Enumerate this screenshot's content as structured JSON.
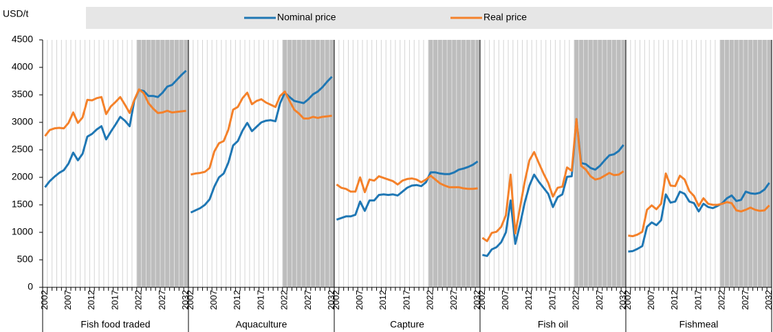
{
  "chart_data": {
    "type": "line",
    "ylabel": "USD/t",
    "ylim": [
      0,
      4500
    ],
    "yticks": [
      0,
      500,
      1000,
      1500,
      2000,
      2500,
      3000,
      3500,
      4000,
      4500
    ],
    "x": [
      2002,
      2003,
      2004,
      2005,
      2006,
      2007,
      2008,
      2009,
      2010,
      2011,
      2012,
      2013,
      2014,
      2015,
      2016,
      2017,
      2018,
      2019,
      2020,
      2021,
      2022,
      2023,
      2024,
      2025,
      2026,
      2027,
      2028,
      2029,
      2030,
      2031,
      2032
    ],
    "xlim": [
      2002,
      2032
    ],
    "xticks": [
      2002,
      2007,
      2012,
      2017,
      2022,
      2027,
      2032
    ],
    "shaded_from": 2022,
    "grid": false,
    "legend": [
      {
        "name": "Nominal price",
        "color": "#1f77b4"
      },
      {
        "name": "Real price",
        "color": "#f4812a"
      }
    ],
    "panels": [
      {
        "name": "Fish food traded",
        "series": [
          {
            "values": [
              1820,
              1930,
              2010,
              2080,
              2130,
              2250,
              2450,
              2310,
              2430,
              2740,
              2790,
              2870,
              2930,
              2690,
              2830,
              2960,
              3100,
              3030,
              2930,
              3400,
              3590,
              3570,
              3480,
              3480,
              3460,
              3540,
              3650,
              3680,
              3770,
              3860,
              3940
            ]
          },
          {
            "values": [
              2750,
              2860,
              2890,
              2900,
              2890,
              2990,
              3180,
              2990,
              3090,
              3410,
              3400,
              3440,
              3460,
              3150,
              3290,
              3370,
              3460,
              3320,
              3170,
              3410,
              3600,
              3530,
              3350,
              3250,
              3170,
              3180,
              3210,
              3180,
              3190,
              3200,
              3210
            ]
          }
        ]
      },
      {
        "name": "Aquaculture",
        "series": [
          {
            "values": [
              1360,
              1400,
              1440,
              1500,
              1600,
              1830,
              2000,
              2070,
              2270,
              2580,
              2660,
              2850,
              2990,
              2840,
              2920,
              3000,
              3030,
              3040,
              3020,
              3350,
              3540,
              3460,
              3390,
              3370,
              3350,
              3420,
              3510,
              3560,
              3640,
              3740,
              3830
            ]
          },
          {
            "values": [
              2050,
              2070,
              2080,
              2100,
              2170,
              2470,
              2620,
              2660,
              2870,
              3230,
              3280,
              3440,
              3540,
              3330,
              3390,
              3420,
              3360,
              3320,
              3280,
              3480,
              3560,
              3390,
              3230,
              3160,
              3070,
              3070,
              3100,
              3080,
              3100,
              3110,
              3120
            ]
          }
        ]
      },
      {
        "name": "Capture",
        "series": [
          {
            "values": [
              1230,
              1260,
              1290,
              1290,
              1320,
              1560,
              1390,
              1580,
              1580,
              1680,
              1690,
              1680,
              1690,
              1670,
              1740,
              1810,
              1850,
              1860,
              1840,
              1910,
              2090,
              2090,
              2070,
              2060,
              2060,
              2090,
              2140,
              2160,
              2190,
              2230,
              2290
            ]
          },
          {
            "values": [
              1870,
              1810,
              1790,
              1740,
              1740,
              2000,
              1730,
              1960,
              1940,
              2020,
              1990,
              1960,
              1930,
              1870,
              1940,
              1970,
              1980,
              1960,
              1910,
              1960,
              2030,
              1960,
              1890,
              1850,
              1820,
              1820,
              1820,
              1800,
              1790,
              1790,
              1800
            ]
          }
        ]
      },
      {
        "name": "Fish oil",
        "series": [
          {
            "values": [
              590,
              570,
              690,
              730,
              820,
              1000,
              1580,
              790,
              1140,
              1540,
              1850,
              2050,
              1920,
              1810,
              1700,
              1460,
              1640,
              1690,
              2010,
              2020,
              3060,
              2260,
              2240,
              2170,
              2140,
              2210,
              2310,
              2400,
              2420,
              2480,
              2590
            ]
          },
          {
            "values": [
              900,
              840,
              990,
              1010,
              1100,
              1310,
              2050,
              980,
              1450,
              1920,
              2310,
              2460,
              2260,
              2070,
              1900,
              1650,
              1810,
              1830,
              2180,
              2120,
              3060,
              2210,
              2140,
              2020,
              1960,
              1980,
              2030,
              2080,
              2040,
              2050,
              2110
            ]
          }
        ]
      },
      {
        "name": "Fishmeal",
        "series": [
          {
            "values": [
              650,
              660,
              700,
              750,
              1100,
              1180,
              1130,
              1220,
              1690,
              1540,
              1560,
              1740,
              1700,
              1560,
              1530,
              1380,
              1520,
              1460,
              1440,
              1480,
              1530,
              1620,
              1670,
              1570,
              1590,
              1740,
              1710,
              1700,
              1720,
              1780,
              1900
            ]
          },
          {
            "values": [
              940,
              930,
              960,
              1010,
              1410,
              1490,
              1420,
              1520,
              2070,
              1850,
              1840,
              2030,
              1960,
              1750,
              1660,
              1480,
              1620,
              1520,
              1500,
              1500,
              1520,
              1550,
              1530,
              1400,
              1380,
              1410,
              1450,
              1410,
              1390,
              1400,
              1490
            ]
          }
        ]
      }
    ]
  }
}
